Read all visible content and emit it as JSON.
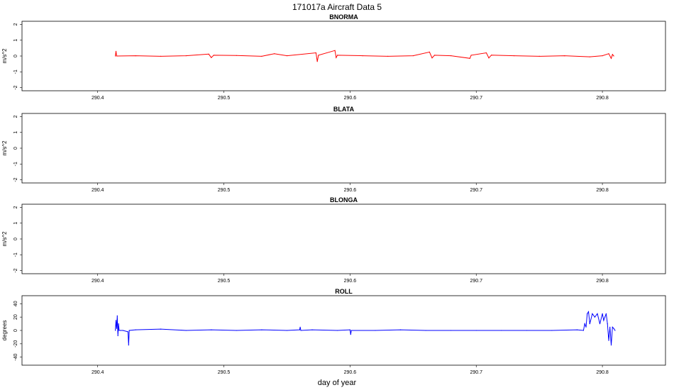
{
  "figure": {
    "title": "171017a   Aircraft Data 5",
    "xlabel": "day of year"
  },
  "chart_data": [
    {
      "type": "line",
      "title": "BNORMA",
      "ylabel": "m/s^2",
      "xlim": [
        290.34,
        290.85
      ],
      "ylim": [
        -2.2,
        2.2
      ],
      "xticks": [
        290.4,
        290.5,
        290.6,
        290.7,
        290.8
      ],
      "xtick_labels": [
        "290.4",
        "290.5",
        "290.6",
        "290.7",
        "290.8"
      ],
      "yticks": [
        -2,
        -1,
        0,
        1,
        2
      ],
      "ytick_labels": [
        "-2",
        "-1",
        "0",
        "1",
        "2"
      ],
      "color": "#ff0000",
      "grid": false,
      "series": [
        {
          "x": [
            290.414,
            290.4145,
            290.415,
            290.43,
            290.45,
            290.47,
            290.488,
            290.49,
            290.492,
            290.51,
            290.53,
            290.54,
            290.55,
            290.573,
            290.574,
            290.575,
            290.588,
            290.589,
            290.59,
            290.61,
            290.63,
            290.65,
            290.663,
            290.665,
            290.667,
            290.68,
            290.695,
            290.696,
            290.708,
            290.71,
            290.712,
            290.73,
            290.75,
            290.77,
            290.79,
            290.8,
            290.805,
            290.807,
            290.808,
            290.809
          ],
          "y": [
            0,
            0.3,
            0,
            0.02,
            -0.02,
            0.02,
            0.12,
            -0.1,
            0.05,
            0.03,
            -0.02,
            0.15,
            0.02,
            0.2,
            -0.35,
            0.05,
            0.35,
            -0.1,
            0.05,
            0.02,
            -0.02,
            0.02,
            0.25,
            -0.12,
            0.05,
            0.02,
            -0.15,
            0.05,
            0.2,
            -0.12,
            0.06,
            0.02,
            -0.02,
            0.02,
            -0.05,
            0.02,
            0.15,
            -0.15,
            0.1,
            0
          ]
        }
      ]
    },
    {
      "type": "line",
      "title": "BLATA",
      "ylabel": "m/s^2",
      "xlim": [
        290.34,
        290.85
      ],
      "ylim": [
        -2.2,
        2.2
      ],
      "xticks": [
        290.4,
        290.5,
        290.6,
        290.7,
        290.8
      ],
      "xtick_labels": [
        "290.4",
        "290.5",
        "290.6",
        "290.7",
        "290.8"
      ],
      "yticks": [
        -2,
        -1,
        0,
        1,
        2
      ],
      "ytick_labels": [
        "-2",
        "-1",
        "0",
        "1",
        "2"
      ],
      "grid": false,
      "series": []
    },
    {
      "type": "line",
      "title": "BLONGA",
      "ylabel": "m/s^2",
      "xlim": [
        290.34,
        290.85
      ],
      "ylim": [
        -2.2,
        2.2
      ],
      "xticks": [
        290.4,
        290.5,
        290.6,
        290.7,
        290.8
      ],
      "xtick_labels": [
        "290.4",
        "290.5",
        "290.6",
        "290.7",
        "290.8"
      ],
      "yticks": [
        -2,
        -1,
        0,
        1,
        2
      ],
      "ytick_labels": [
        "-2",
        "-1",
        "0",
        "1",
        "2"
      ],
      "grid": false,
      "series": []
    },
    {
      "type": "line",
      "title": "ROLL",
      "ylabel": "degrees",
      "xlim": [
        290.34,
        290.85
      ],
      "ylim": [
        -52,
        52
      ],
      "xticks": [
        290.4,
        290.5,
        290.6,
        290.7,
        290.8
      ],
      "xtick_labels": [
        "290.4",
        "290.5",
        "290.6",
        "290.7",
        "290.8"
      ],
      "yticks": [
        -40,
        -20,
        0,
        20,
        40
      ],
      "ytick_labels": [
        "-40",
        "-20",
        "0",
        "20",
        "40"
      ],
      "color": "#0000ff",
      "grid": false,
      "series": [
        {
          "x": [
            290.414,
            290.4145,
            290.415,
            290.4155,
            290.416,
            290.4165,
            290.417,
            290.418,
            290.42,
            290.424,
            290.4245,
            290.425,
            290.43,
            290.45,
            290.47,
            290.49,
            290.51,
            290.53,
            290.55,
            290.56,
            290.5605,
            290.561,
            290.57,
            290.59,
            290.6,
            290.6005,
            290.601,
            290.62,
            290.64,
            290.66,
            290.68,
            290.7,
            290.72,
            290.74,
            290.76,
            290.78,
            290.785,
            290.786,
            290.787,
            290.788,
            290.789,
            290.79,
            290.792,
            290.794,
            290.796,
            290.798,
            290.8,
            290.801,
            290.802,
            290.803,
            290.804,
            290.805,
            290.806,
            290.807,
            290.808,
            290.809,
            290.81
          ],
          "y": [
            0,
            15,
            3,
            22,
            -8,
            10,
            0,
            0,
            0,
            -2,
            -22,
            0,
            1,
            2,
            0,
            1,
            0,
            1,
            0,
            1,
            5,
            0,
            1,
            0,
            1,
            -6,
            0,
            0,
            1,
            0,
            0,
            0,
            0,
            0,
            0,
            1,
            0,
            10,
            5,
            25,
            28,
            10,
            25,
            20,
            25,
            10,
            25,
            15,
            20,
            25,
            10,
            -15,
            5,
            -22,
            5,
            3,
            0
          ]
        }
      ]
    }
  ]
}
